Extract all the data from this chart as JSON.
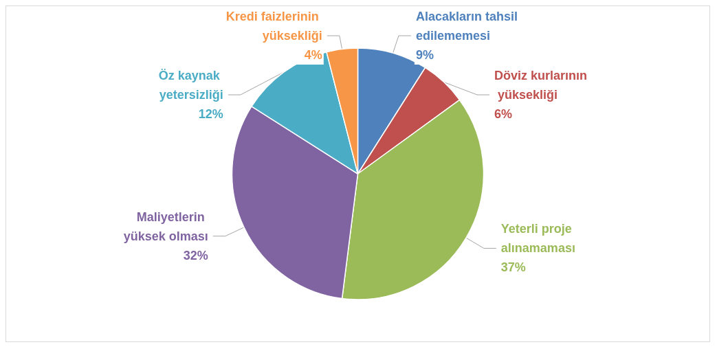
{
  "chart_data": {
    "type": "pie",
    "categories": [
      "Alacakların tahsil edilememesi",
      "Döviz kurlarının yüksekliği",
      "Yeterli proje alınamaması",
      "Maliyetlerin yüksek olması",
      "Öz kaynak yetersizliği",
      "Kredi faizlerinin yüksekliği"
    ],
    "values": [
      9,
      6,
      37,
      32,
      12,
      4
    ],
    "colors": [
      "#4f81bd",
      "#c0504d",
      "#9bbb59",
      "#8064a2",
      "#4bacc6",
      "#f79646"
    ],
    "value_labels": [
      "9%",
      "6%",
      "37%",
      "32%",
      "12%",
      "4%"
    ],
    "legend": false
  }
}
